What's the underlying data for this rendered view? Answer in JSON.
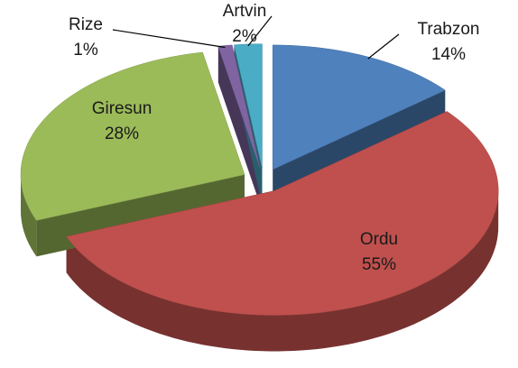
{
  "chart_data": {
    "type": "pie",
    "three_d": true,
    "exploded": true,
    "categories": [
      "Trabzon",
      "Ordu",
      "Giresun",
      "Rize",
      "Artvin"
    ],
    "values": [
      14,
      55,
      28,
      1,
      2
    ],
    "value_labels": [
      "14%",
      "55%",
      "28%",
      "1%",
      "2%"
    ],
    "colors": [
      "#4f81bd",
      "#c0504d",
      "#9bbb59",
      "#8064a2",
      "#4bacc6"
    ]
  }
}
